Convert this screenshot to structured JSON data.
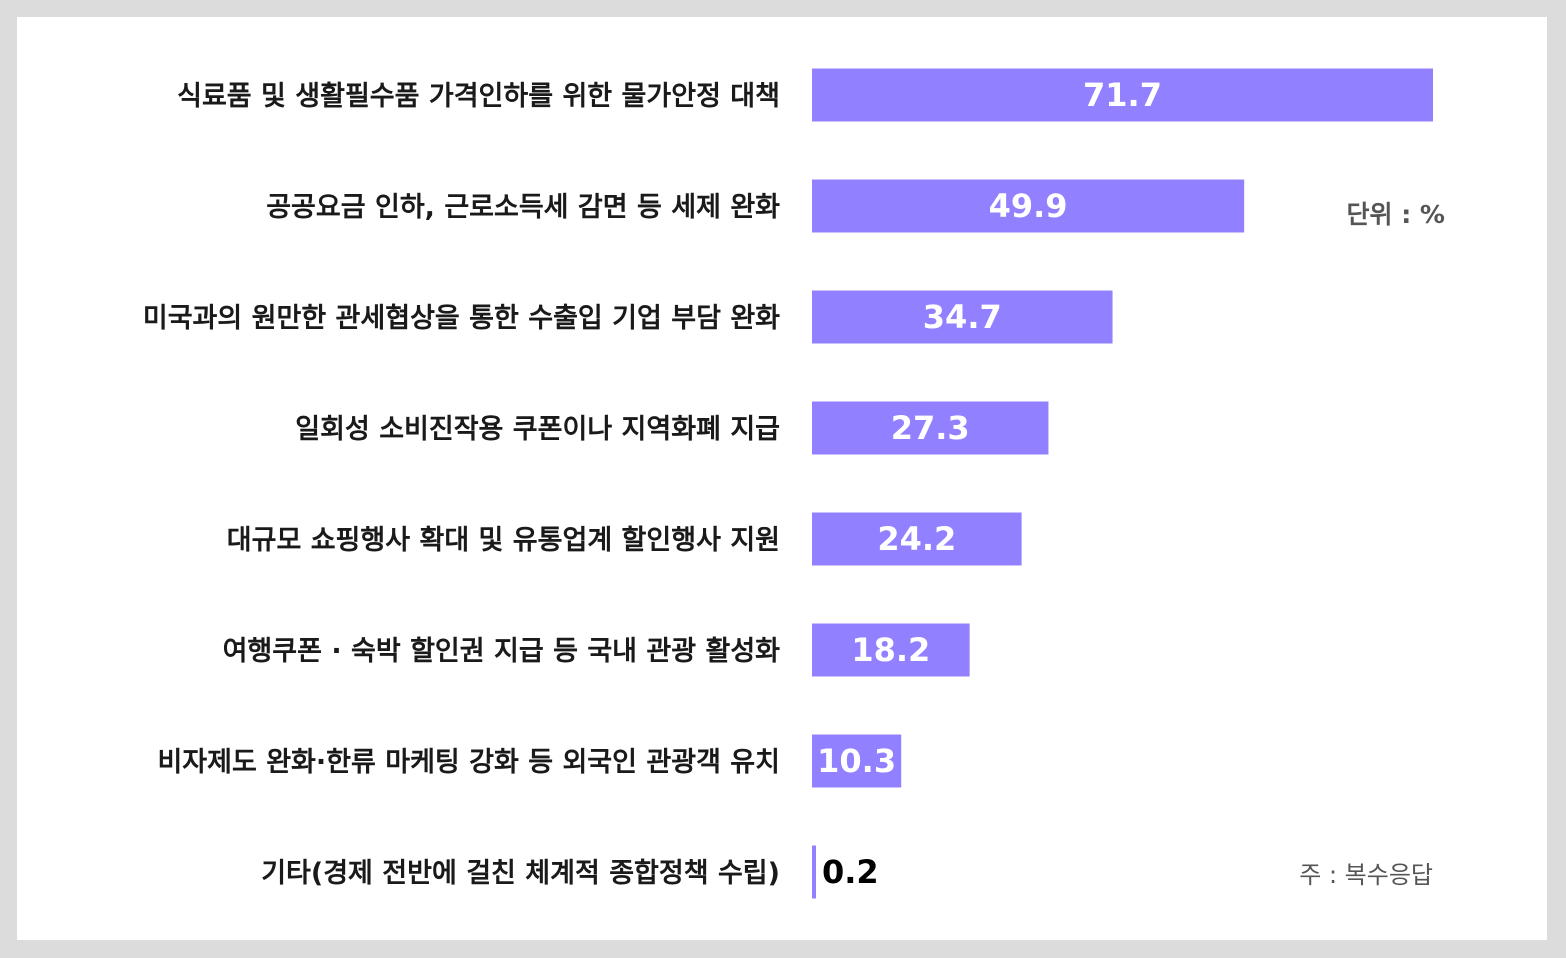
{
  "chart_data": {
    "type": "bar",
    "orientation": "horizontal",
    "categories": [
      "식료품 및 생활필수품 가격인하를 위한 물가안정 대책",
      "공공요금 인하, 근로소득세 감면 등 세제 완화",
      "미국과의 원만한 관세협상을 통한 수출입 기업 부담 완화",
      "일회성 소비진작용 쿠폰이나 지역화폐 지급",
      "대규모 쇼핑행사 확대 및 유통업계 할인행사 지원",
      "여행쿠폰 · 숙박 할인권 지급 등 국내 관광 활성화",
      "비자제도 완화·한류 마케팅 강화 등 외국인 관광객 유치",
      "기타(경제 전반에 걸친 체계적 종합정책 수립)"
    ],
    "values": [
      71.7,
      49.9,
      34.7,
      27.3,
      24.2,
      18.2,
      10.3,
      0.2
    ],
    "value_labels": [
      "71.7",
      "49.9",
      "34.7",
      "27.3",
      "24.2",
      "18.2",
      "10.3",
      "0.2"
    ],
    "unit_label": "단위 : %",
    "footnote": "주 : 복수응답",
    "bar_color": "#9180ff",
    "xlim": [
      0,
      71.7
    ],
    "grid": false
  }
}
